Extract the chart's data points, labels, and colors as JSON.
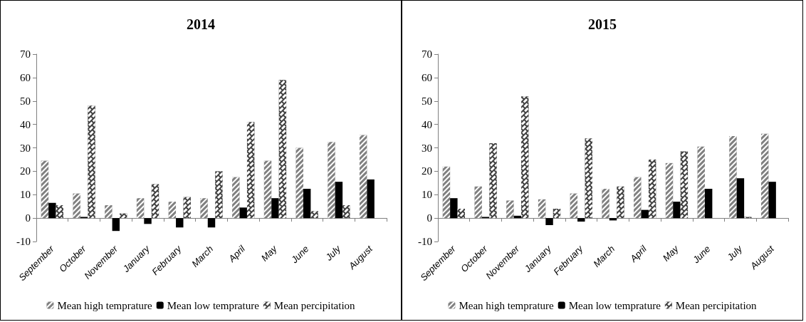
{
  "chart_data": [
    {
      "type": "bar",
      "title": "2014",
      "categories": [
        "September",
        "October",
        "November",
        "January",
        "February",
        "March",
        "April",
        "May",
        "June",
        "July",
        "August"
      ],
      "series": [
        {
          "name": "Mean high temprature",
          "color": "#808080",
          "values": [
            24.5,
            10.5,
            5.5,
            8.5,
            7,
            8.5,
            17.5,
            24.5,
            30,
            32.5,
            35.5
          ]
        },
        {
          "name": "Mean low temprature",
          "color": "#000000",
          "values": [
            6.5,
            0.5,
            -5.5,
            -2.5,
            -4,
            -4,
            4.5,
            8.5,
            12.5,
            15.5,
            16.5
          ]
        },
        {
          "name": "Mean percipitation",
          "color": "#404040",
          "values": [
            5.5,
            48,
            2,
            14.5,
            9,
            20,
            41,
            59,
            3,
            5.5,
            0
          ]
        }
      ],
      "ylim": [
        -10,
        70
      ],
      "yticks": [
        -10,
        0,
        10,
        20,
        30,
        40,
        50,
        60,
        70
      ],
      "legend": "bottom"
    },
    {
      "type": "bar",
      "title": "2015",
      "categories": [
        "September",
        "October",
        "November",
        "January",
        "February",
        "March",
        "April",
        "May",
        "June",
        "July",
        "August"
      ],
      "series": [
        {
          "name": "Mean high temprature",
          "color": "#808080",
          "values": [
            22,
            13.5,
            7.5,
            8,
            10.5,
            12.5,
            17.5,
            23.5,
            30.5,
            35,
            36
          ]
        },
        {
          "name": "Mean low temprature",
          "color": "#000000",
          "values": [
            8.5,
            0.5,
            1,
            -3,
            -1.5,
            -1,
            3.5,
            7,
            12.5,
            17,
            15.5
          ]
        },
        {
          "name": "Mean percipitation",
          "color": "#404040",
          "values": [
            4,
            32,
            52,
            4,
            34,
            13.5,
            25,
            28.5,
            0,
            0.5,
            0
          ]
        }
      ],
      "ylim": [
        -10,
        70
      ],
      "yticks": [
        -10,
        0,
        10,
        20,
        30,
        40,
        50,
        60,
        70
      ],
      "legend": "bottom"
    }
  ]
}
